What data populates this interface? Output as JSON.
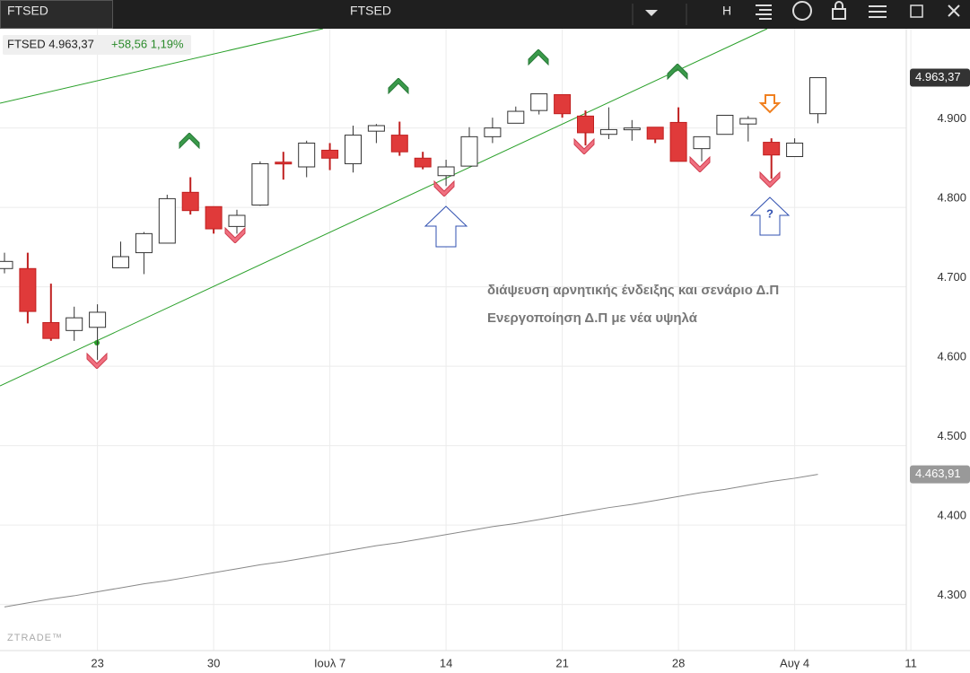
{
  "toolbar": {
    "tab": "FTSED",
    "symbol": "FTSED",
    "period": "H"
  },
  "header": {
    "quote": "FTSED 4.963,37",
    "change": "+58,56 1,19%"
  },
  "watermark": "ZTRADE™",
  "annotations": [
    "διάψευση αρνητικής ένδειξης και σενάριο Δ.Π",
    "Ενεργοποίηση Δ.Π με νέα υψηλά",
    "?"
  ],
  "chart_data": {
    "type": "candlestick",
    "categories": [
      null,
      null,
      null,
      null,
      "23",
      null,
      null,
      null,
      null,
      "30",
      null,
      null,
      null,
      null,
      "Ιουλ 7",
      null,
      null,
      null,
      null,
      "14",
      null,
      null,
      null,
      null,
      "21",
      null,
      null,
      null,
      null,
      "28",
      null,
      null,
      null,
      null,
      "Αυγ 4",
      null,
      null,
      null,
      null,
      "11"
    ],
    "open": [
      4723,
      4723,
      4655,
      4645,
      4649,
      4724,
      4743,
      4755,
      4819,
      4801,
      4776,
      4803,
      4857,
      4851,
      4872,
      4855,
      4896,
      4891,
      4862,
      4840,
      4852,
      4889,
      4906,
      4922,
      4942,
      4915,
      4892,
      4898,
      4901,
      4907,
      4874,
      4892,
      4905,
      4882,
      4864,
      4918,
      null,
      null,
      null,
      null
    ],
    "high": [
      4743,
      4743,
      4704,
      4675,
      4678,
      4757,
      4769,
      4816,
      4838,
      4801,
      4797,
      4858,
      4870,
      4884,
      4881,
      4903,
      4905,
      4908,
      4870,
      4860,
      4901,
      4913,
      4927,
      4943,
      4942,
      4922,
      4926,
      4910,
      4901,
      4926,
      4889,
      4916,
      4915,
      4887,
      4887,
      4963,
      null,
      null,
      null,
      null
    ],
    "low": [
      4717,
      4654,
      4632,
      4632,
      4608,
      4724,
      4716,
      4755,
      4791,
      4767,
      4767,
      4802,
      4835,
      4838,
      4847,
      4844,
      4881,
      4865,
      4848,
      4827,
      4852,
      4881,
      4906,
      4917,
      4913,
      4878,
      4886,
      4884,
      4881,
      4858,
      4858,
      4892,
      4883,
      4836,
      4864,
      4906,
      null,
      null,
      null,
      null
    ],
    "close": [
      4732,
      4669,
      4635,
      4661,
      4668,
      4738,
      4767,
      4811,
      4796,
      4773,
      4790,
      4855,
      4855,
      4881,
      4862,
      4891,
      4903,
      4870,
      4851,
      4851,
      4889,
      4900,
      4921,
      4943,
      4918,
      4894,
      4898,
      4900,
      4886,
      4858,
      4889,
      4916,
      4912,
      4866,
      4881,
      4963.37,
      null,
      null,
      null,
      null
    ],
    "up_color": "#ffffff",
    "down_color": "#e03a3a",
    "ma": {
      "color": "#888888",
      "values": [
        4297,
        4302,
        4307,
        4311,
        4316,
        4321,
        4326,
        4330,
        4335,
        4340,
        4345,
        4350,
        4354,
        4359,
        4364,
        4369,
        4374,
        4378,
        4383,
        4388,
        4393,
        4398,
        4402,
        4407,
        4412,
        4417,
        4422,
        4426,
        4431,
        4436,
        4441,
        4445,
        4450,
        4455,
        4459,
        4463.91,
        null,
        null,
        null,
        null
      ]
    },
    "price_marks": [
      {
        "value": 4963.37,
        "label": "4.963,37"
      },
      {
        "value": 4463.91,
        "label": "4.463,91"
      }
    ],
    "ylim": [
      4242,
      5025
    ],
    "yticks": [
      {
        "value": 4300,
        "label": "4.300"
      },
      {
        "value": 4400,
        "label": "4.400"
      },
      {
        "value": 4500,
        "label": "4.500"
      },
      {
        "value": 4600,
        "label": "4.600"
      },
      {
        "value": 4700,
        "label": "4.700"
      },
      {
        "value": 4800,
        "label": "4.800"
      },
      {
        "value": 4900,
        "label": "4.900"
      }
    ],
    "grid": true
  }
}
